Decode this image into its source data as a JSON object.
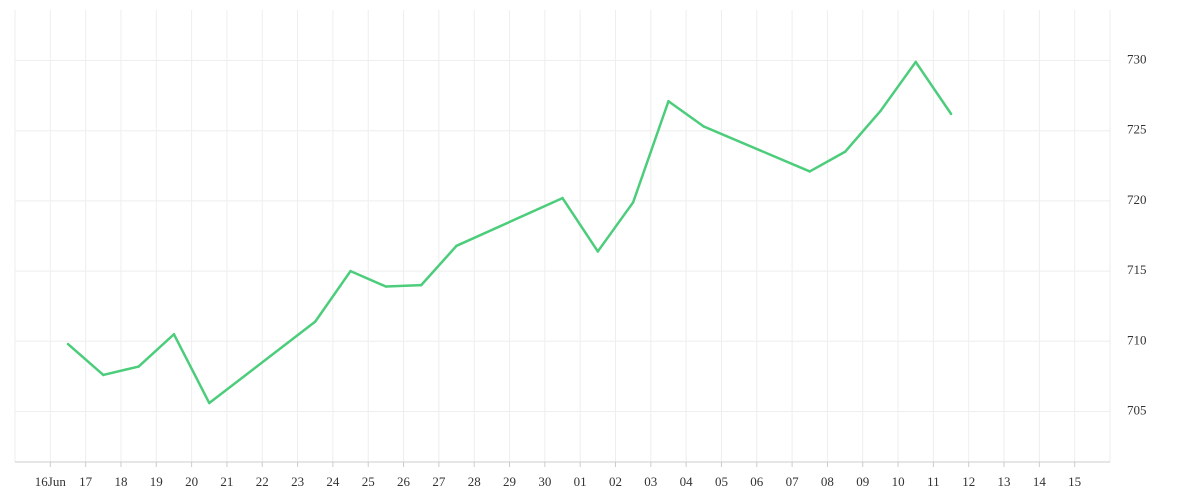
{
  "chart_data": {
    "type": "line",
    "categories": [
      "16Jun",
      "17",
      "18",
      "19",
      "20",
      "21",
      "22",
      "23",
      "24",
      "25",
      "26",
      "27",
      "28",
      "29",
      "30",
      "01",
      "02",
      "03",
      "04",
      "05",
      "06",
      "07",
      "08",
      "09",
      "10",
      "11",
      "12",
      "13",
      "14",
      "15"
    ],
    "series": [
      {
        "color": "#4ccd7b",
        "values": [
          709.8,
          707.6,
          708.2,
          710.5,
          705.6,
          null,
          null,
          711.4,
          715.0,
          713.9,
          714.0,
          716.8,
          null,
          null,
          720.2,
          716.4,
          719.9,
          727.1,
          725.3,
          null,
          null,
          722.1,
          723.5,
          726.4,
          729.9,
          726.2,
          null,
          null,
          null,
          null
        ]
      }
    ],
    "ylim": [
      701.4,
      733.6
    ],
    "yticks": [
      705,
      710,
      715,
      720,
      725,
      730
    ],
    "grid": true
  }
}
